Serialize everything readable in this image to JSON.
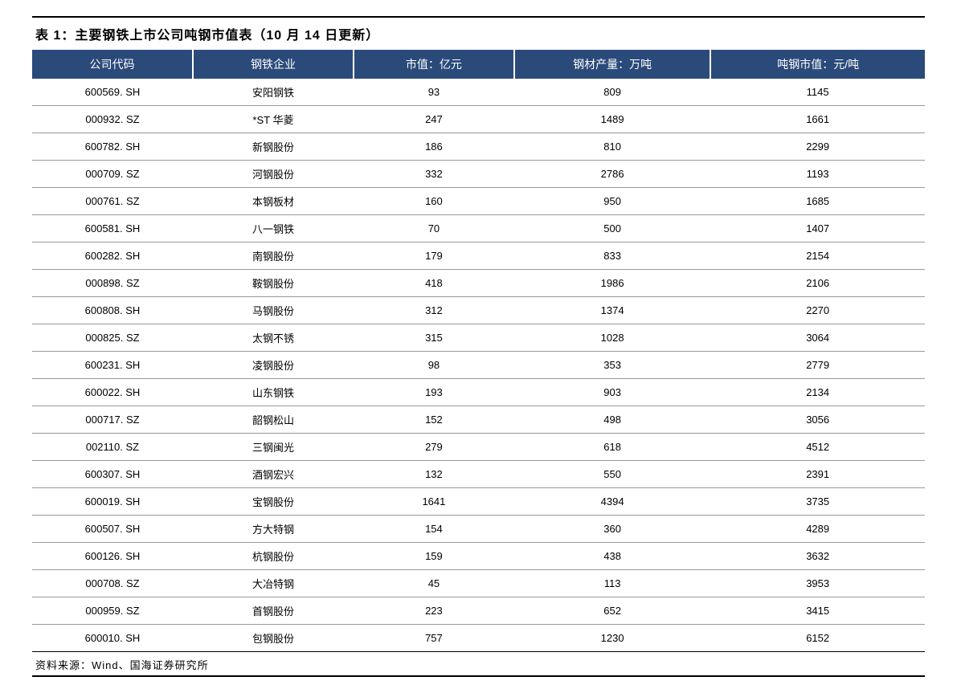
{
  "table": {
    "title": "表 1：主要钢铁上市公司吨钢市值表（10 月 14 日更新）",
    "header_bg_color": "#2a4a7a",
    "header_text_color": "#ffffff",
    "border_color": "#000000",
    "row_border_color": "#999999",
    "columns": [
      {
        "label": "公司代码",
        "width": "18%"
      },
      {
        "label": "钢铁企业",
        "width": "18%"
      },
      {
        "label": "市值：亿元",
        "width": "18%"
      },
      {
        "label": "钢材产量：万吨",
        "width": "22%"
      },
      {
        "label": "吨钢市值：元/吨",
        "width": "24%"
      }
    ],
    "rows": [
      {
        "code": "600569. SH",
        "company": "安阳钢铁",
        "marketcap": "93",
        "production": "809",
        "pertonne": "1145"
      },
      {
        "code": "000932. SZ",
        "company": "*ST 华菱",
        "marketcap": "247",
        "production": "1489",
        "pertonne": "1661"
      },
      {
        "code": "600782. SH",
        "company": "新钢股份",
        "marketcap": "186",
        "production": "810",
        "pertonne": "2299"
      },
      {
        "code": "000709. SZ",
        "company": "河钢股份",
        "marketcap": "332",
        "production": "2786",
        "pertonne": "1193"
      },
      {
        "code": "000761. SZ",
        "company": "本钢板材",
        "marketcap": "160",
        "production": "950",
        "pertonne": "1685"
      },
      {
        "code": "600581. SH",
        "company": "八一钢铁",
        "marketcap": "70",
        "production": "500",
        "pertonne": "1407"
      },
      {
        "code": "600282. SH",
        "company": "南钢股份",
        "marketcap": "179",
        "production": "833",
        "pertonne": "2154"
      },
      {
        "code": "000898. SZ",
        "company": "鞍钢股份",
        "marketcap": "418",
        "production": "1986",
        "pertonne": "2106"
      },
      {
        "code": "600808. SH",
        "company": "马钢股份",
        "marketcap": "312",
        "production": "1374",
        "pertonne": "2270"
      },
      {
        "code": "000825. SZ",
        "company": "太钢不锈",
        "marketcap": "315",
        "production": "1028",
        "pertonne": "3064"
      },
      {
        "code": "600231. SH",
        "company": "凌钢股份",
        "marketcap": "98",
        "production": "353",
        "pertonne": "2779"
      },
      {
        "code": "600022. SH",
        "company": "山东钢铁",
        "marketcap": "193",
        "production": "903",
        "pertonne": "2134"
      },
      {
        "code": "000717. SZ",
        "company": "韶钢松山",
        "marketcap": "152",
        "production": "498",
        "pertonne": "3056"
      },
      {
        "code": "002110. SZ",
        "company": "三钢闽光",
        "marketcap": "279",
        "production": "618",
        "pertonne": "4512"
      },
      {
        "code": "600307. SH",
        "company": "酒钢宏兴",
        "marketcap": "132",
        "production": "550",
        "pertonne": "2391"
      },
      {
        "code": "600019. SH",
        "company": "宝钢股份",
        "marketcap": "1641",
        "production": "4394",
        "pertonne": "3735"
      },
      {
        "code": "600507. SH",
        "company": "方大特钢",
        "marketcap": "154",
        "production": "360",
        "pertonne": "4289"
      },
      {
        "code": "600126. SH",
        "company": "杭钢股份",
        "marketcap": "159",
        "production": "438",
        "pertonne": "3632"
      },
      {
        "code": "000708. SZ",
        "company": "大冶特钢",
        "marketcap": "45",
        "production": "113",
        "pertonne": "3953"
      },
      {
        "code": "000959. SZ",
        "company": "首钢股份",
        "marketcap": "223",
        "production": "652",
        "pertonne": "3415"
      },
      {
        "code": "600010. SH",
        "company": "包钢股份",
        "marketcap": "757",
        "production": "1230",
        "pertonne": "6152"
      }
    ],
    "source": "资料来源：Wind、国海证券研究所"
  }
}
